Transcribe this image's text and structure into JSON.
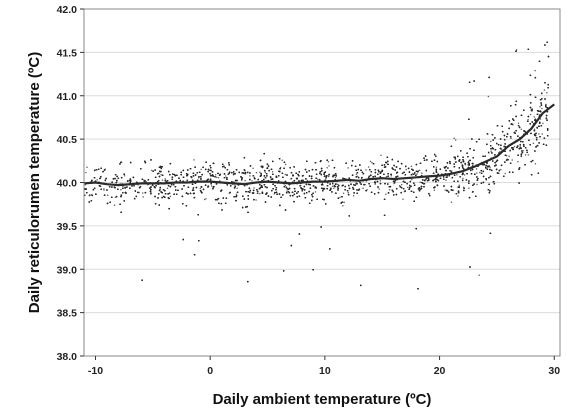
{
  "chart_data": {
    "type": "scatter",
    "title": "",
    "xlabel": "Daily ambient temperature (ºC)",
    "ylabel": "Daily reticulorumen temperature (ºC)",
    "xlim": [
      -11,
      30.5
    ],
    "ylim": [
      38.0,
      42.0
    ],
    "x_ticks": [
      -10,
      0,
      10,
      20,
      30
    ],
    "x_tick_labels": [
      "-10",
      "0",
      "10",
      "20",
      "30"
    ],
    "y_ticks": [
      38.0,
      38.5,
      39.0,
      39.5,
      40.0,
      40.5,
      41.0,
      41.5,
      42.0
    ],
    "y_tick_labels": [
      "38.0",
      "38.5",
      "39.0",
      "39.5",
      "40.0",
      "40.5",
      "41.0",
      "41.5",
      "42.0"
    ],
    "grid": "horizontal",
    "legend": "none",
    "colors": {
      "points": "#2a2a2a",
      "trend": "#2b2b2b",
      "grid": "#dcdcdc",
      "frame": "#888888"
    },
    "series": [
      {
        "kind": "smoothed-trend",
        "x": [
          -11,
          -10,
          -9,
          -8,
          -7,
          -6,
          -5,
          -4,
          -3,
          -2,
          -1,
          0,
          1,
          2,
          3,
          4,
          5,
          6,
          7,
          8,
          9,
          10,
          11,
          12,
          13,
          14,
          15,
          16,
          17,
          18,
          19,
          20,
          21,
          22,
          23,
          24,
          25,
          26,
          27,
          28,
          29,
          30
        ],
        "y": [
          39.99,
          40.0,
          39.98,
          39.97,
          39.98,
          39.99,
          39.99,
          39.99,
          40.0,
          40.0,
          40.01,
          40.01,
          40.0,
          39.99,
          39.98,
          40.0,
          40.01,
          40.0,
          39.99,
          40.0,
          40.01,
          40.01,
          40.02,
          40.03,
          40.02,
          40.04,
          40.05,
          40.04,
          40.05,
          40.06,
          40.07,
          40.08,
          40.1,
          40.13,
          40.18,
          40.24,
          40.3,
          40.42,
          40.5,
          40.62,
          40.8,
          40.9
        ]
      },
      {
        "kind": "daily-observations",
        "note_count": "approximately 8000 points",
        "x_range": [
          -11,
          29.5
        ],
        "y_range": [
          38.6,
          41.9
        ]
      }
    ]
  }
}
